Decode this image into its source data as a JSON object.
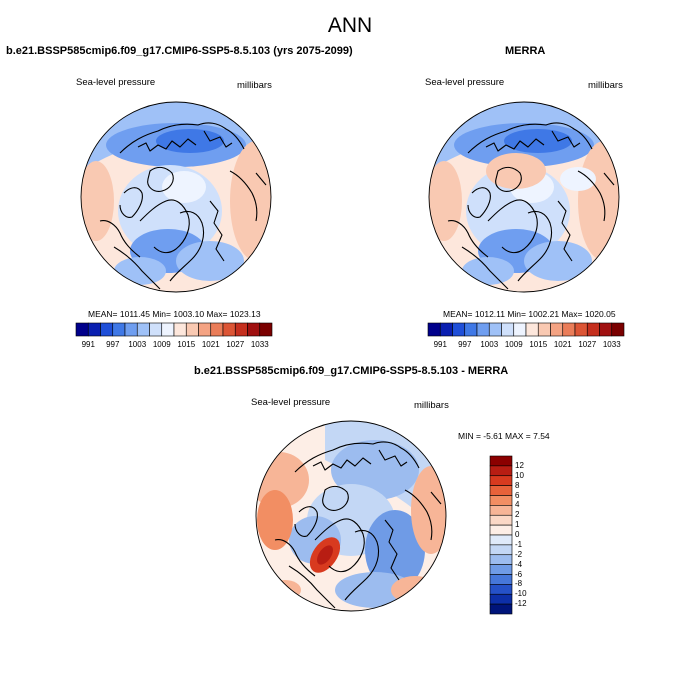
{
  "title": "ANN",
  "panels": {
    "model": {
      "title": "b.e21.BSSP585cmip6.f09_g17.CMIP6-SSP5-8.5.103 (yrs 2075-2099)",
      "variable": "Sea-level pressure",
      "units": "millibars",
      "stats": "MEAN= 1011.45   Min= 1003.10   Max= 1023.13",
      "colorbar_labels": [
        "991",
        "997",
        "1003",
        "1009",
        "1015",
        "1021",
        "1027",
        "1033"
      ]
    },
    "obs": {
      "title": "MERRA",
      "variable": "Sea-level pressure",
      "units": "millibars",
      "stats": "MEAN= 1012.11   Min= 1002.21   Max= 1020.05",
      "colorbar_labels": [
        "991",
        "997",
        "1003",
        "1009",
        "1015",
        "1021",
        "1027",
        "1033"
      ]
    },
    "diff": {
      "title": "b.e21.BSSP585cmip6.f09_g17.CMIP6-SSP5-8.5.103 - MERRA",
      "variable": "Sea-level pressure",
      "units": "millibars",
      "stats": "MIN =  -5.61  MAX =   7.54",
      "colorbar_labels": [
        "12",
        "10",
        "8",
        "6",
        "4",
        "2",
        "1",
        "0",
        "-1",
        "-2",
        "-4",
        "-6",
        "-8",
        "-10",
        "-12"
      ]
    }
  },
  "colors": {
    "abs_scale": [
      "#00008b",
      "#0a1fb0",
      "#1f4fd8",
      "#3f78e6",
      "#6f9ef0",
      "#9fc1f7",
      "#cfe0fb",
      "#eef4ff",
      "#fde7dc",
      "#f9c9b2",
      "#f4a383",
      "#ea7d59",
      "#dc5535",
      "#c52f1e",
      "#a01010",
      "#7a0000"
    ],
    "diff_scale": [
      "#8b0000",
      "#b81d13",
      "#d83a1f",
      "#e8623a",
      "#f28e63",
      "#f7b597",
      "#fbd8c6",
      "#fdeee6",
      "#dfeafa",
      "#c3d7f5",
      "#9cbcef",
      "#6f9be6",
      "#4677da",
      "#2551c8",
      "#0d2fa8",
      "#00147a"
    ],
    "coast": "#000000"
  }
}
